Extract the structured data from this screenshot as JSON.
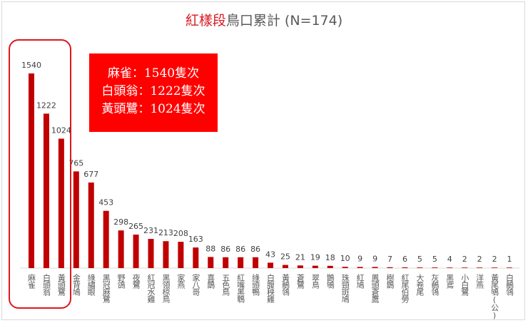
{
  "chart_data": {
    "type": "bar",
    "title_highlight": "紅樣段",
    "title_rest": "鳥口累計 (N=174)",
    "categories": [
      "麻雀",
      "白頭翁",
      "黃頭鷺",
      "金背鳩",
      "綠繡眼",
      "黑冠麻鷺",
      "野鴿",
      "夜鷺",
      "紅冠水雞",
      "黑領椋鳥",
      "家燕",
      "家八哥",
      "喜鵲",
      "五色鳥",
      "紅嘴黑鵯",
      "綠頭鴨",
      "白腹秧雞",
      "黃鶺鴒",
      "蒼鷺",
      "翠鳥",
      "鵲鴝",
      "珠頸斑鳩",
      "紅鳩",
      "鳳頭蒼鷹",
      "樹鵲",
      "紅尾伯勞",
      "大卷尾",
      "灰鶺鴒",
      "黑鳶",
      "小白鷺",
      "洋燕",
      "黃尾鴝(公)",
      "白鶺鴒"
    ],
    "values": [
      1540,
      1222,
      1024,
      765,
      677,
      453,
      298,
      265,
      231,
      213,
      208,
      163,
      88,
      86,
      86,
      86,
      43,
      25,
      21,
      19,
      18,
      10,
      9,
      9,
      7,
      6,
      5,
      5,
      4,
      2,
      2,
      2,
      1
    ],
    "bar_color": "#c00000",
    "ylim": [
      0,
      1540
    ],
    "grid": false,
    "data_labels": true
  },
  "callout": {
    "lines": [
      "麻雀：1540隻次",
      "白頭翁：1222隻次",
      "黃頭鷺：1024隻次"
    ],
    "background": "#ff0000"
  },
  "highlight_color": "#e0161e"
}
